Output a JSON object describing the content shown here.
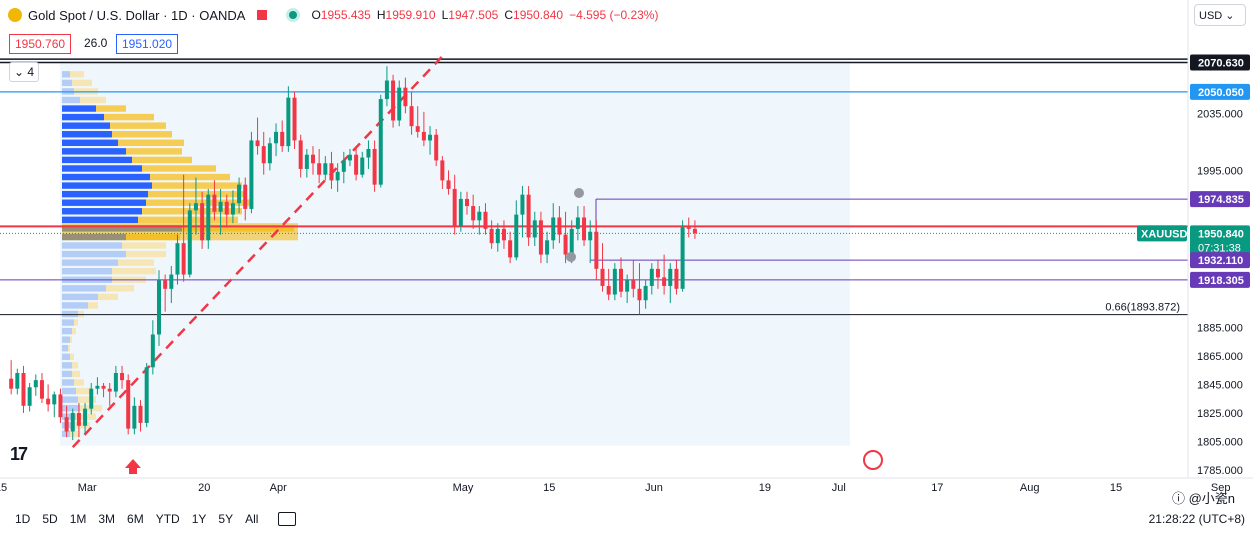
{
  "header": {
    "title": "Gold Spot / U.S. Dollar · 1D · OANDA",
    "ohlc": [
      {
        "k": "O",
        "v": "1955.435"
      },
      {
        "k": "H",
        "v": "1959.910"
      },
      {
        "k": "L",
        "v": "1947.505"
      },
      {
        "k": "C",
        "v": "1950.840"
      }
    ],
    "change": "−4.595 (−0.23%)"
  },
  "trade": {
    "sell": "1950.760",
    "spread": "26.0",
    "buy": "1951.020"
  },
  "indicators_count": "4",
  "currency": "USD",
  "colors": {
    "up": "#089981",
    "down": "#f23645",
    "volume_profile_up": "#2962ff",
    "volume_profile_down": "#f2b705",
    "line_blue": "#2196f3",
    "line_purple": "#673ab7",
    "line_red": "#f23645"
  },
  "chart_data": {
    "type": "candlestick",
    "symbol": "XAUUSD",
    "ylim": [
      1778,
      2092
    ],
    "y_ticks": [
      1785,
      1805,
      1825,
      1845,
      1865,
      1885,
      1995,
      2035
    ],
    "x_labels": [
      {
        "label": "15",
        "day": 0
      },
      {
        "label": "Mar",
        "day": 14
      },
      {
        "label": "20",
        "day": 33
      },
      {
        "label": "Apr",
        "day": 45
      },
      {
        "label": "May",
        "day": 75
      },
      {
        "label": "15",
        "day": 89
      },
      {
        "label": "Jun",
        "day": 106
      },
      {
        "label": "19",
        "day": 124
      },
      {
        "label": "Jul",
        "day": 136
      },
      {
        "label": "17",
        "day": 152
      },
      {
        "label": "Aug",
        "day": 167
      },
      {
        "label": "15",
        "day": 181
      },
      {
        "label": "Sep",
        "day": 198
      }
    ],
    "price_labels": [
      {
        "value": 2070.63,
        "text": "2070.630",
        "style": "dark"
      },
      {
        "value": 2050.05,
        "text": "2050.050",
        "style": "blue"
      },
      {
        "value": 1974.835,
        "text": "1974.835",
        "style": "purple"
      },
      {
        "value": 1950.84,
        "text": "1950.840",
        "style": "green"
      },
      {
        "value": 1932.11,
        "text": "1932.110",
        "style": "purple"
      },
      {
        "value": 1918.305,
        "text": "1918.305",
        "style": "purple"
      }
    ],
    "countdown": "07:31:38",
    "fib_label": "0.66(1893.872)",
    "fib_value": 1893.872,
    "candles": [
      [
        1,
        1849,
        1862,
        1838,
        1842
      ],
      [
        2,
        1842,
        1856,
        1838,
        1853
      ],
      [
        3,
        1853,
        1858,
        1825,
        1830
      ],
      [
        4,
        1830,
        1846,
        1826,
        1843
      ],
      [
        5,
        1843,
        1852,
        1837,
        1848
      ],
      [
        6,
        1848,
        1853,
        1832,
        1835
      ],
      [
        7,
        1835,
        1845,
        1826,
        1831
      ],
      [
        8,
        1831,
        1840,
        1822,
        1838
      ],
      [
        9,
        1838,
        1842,
        1818,
        1822
      ],
      [
        10,
        1822,
        1830,
        1808,
        1812
      ],
      [
        11,
        1812,
        1828,
        1806,
        1825
      ],
      [
        12,
        1825,
        1832,
        1808,
        1816
      ],
      [
        13,
        1816,
        1832,
        1810,
        1828
      ],
      [
        14,
        1828,
        1846,
        1824,
        1842
      ],
      [
        15,
        1842,
        1850,
        1838,
        1844
      ],
      [
        16,
        1844,
        1846,
        1836,
        1842
      ],
      [
        17,
        1842,
        1846,
        1830,
        1840
      ],
      [
        18,
        1840,
        1858,
        1836,
        1853
      ],
      [
        19,
        1853,
        1858,
        1842,
        1848
      ],
      [
        20,
        1848,
        1852,
        1810,
        1814
      ],
      [
        21,
        1814,
        1836,
        1810,
        1830
      ],
      [
        22,
        1830,
        1834,
        1812,
        1818
      ],
      [
        23,
        1818,
        1860,
        1815,
        1857
      ],
      [
        24,
        1857,
        1890,
        1852,
        1880
      ],
      [
        25,
        1880,
        1925,
        1872,
        1918
      ],
      [
        26,
        1918,
        1922,
        1896,
        1912
      ],
      [
        27,
        1912,
        1928,
        1902,
        1922
      ],
      [
        28,
        1922,
        1950,
        1915,
        1944
      ],
      [
        29,
        1944,
        1992,
        1917,
        1922
      ],
      [
        30,
        1922,
        1972,
        1920,
        1967
      ],
      [
        31,
        1967,
        1990,
        1950,
        1972
      ],
      [
        32,
        1972,
        1980,
        1940,
        1946
      ],
      [
        33,
        1946,
        1982,
        1940,
        1978
      ],
      [
        34,
        1978,
        1988,
        1960,
        1966
      ],
      [
        35,
        1966,
        1982,
        1950,
        1973
      ],
      [
        36,
        1973,
        1978,
        1955,
        1964
      ],
      [
        37,
        1964,
        1981,
        1958,
        1972
      ],
      [
        38,
        1972,
        1990,
        1965,
        1985
      ],
      [
        39,
        1985,
        1990,
        1960,
        1968
      ],
      [
        40,
        1968,
        2022,
        1965,
        2016
      ],
      [
        41,
        2016,
        2032,
        2006,
        2012
      ],
      [
        42,
        2012,
        2022,
        1992,
        2000
      ],
      [
        43,
        2000,
        2018,
        1995,
        2014
      ],
      [
        44,
        2014,
        2028,
        2005,
        2022
      ],
      [
        45,
        2022,
        2030,
        2008,
        2012
      ],
      [
        46,
        2012,
        2054,
        2008,
        2046
      ],
      [
        47,
        2046,
        2050,
        2010,
        2016
      ],
      [
        48,
        2016,
        2020,
        1990,
        1996
      ],
      [
        49,
        1996,
        2010,
        1990,
        2006
      ],
      [
        50,
        2006,
        2012,
        1992,
        2000
      ],
      [
        51,
        2000,
        2010,
        1986,
        1992
      ],
      [
        52,
        1992,
        2005,
        1988,
        2000
      ],
      [
        53,
        2000,
        2008,
        1982,
        1988
      ],
      [
        54,
        1988,
        2000,
        1980,
        1994
      ],
      [
        55,
        1994,
        2008,
        1986,
        2002
      ],
      [
        56,
        2002,
        2010,
        1998,
        2006
      ],
      [
        57,
        2006,
        2012,
        1988,
        1992
      ],
      [
        58,
        1992,
        2008,
        1990,
        2004
      ],
      [
        59,
        2004,
        2016,
        1996,
        2010
      ],
      [
        60,
        2010,
        2016,
        1980,
        1985
      ],
      [
        61,
        1985,
        2048,
        1983,
        2045
      ],
      [
        62,
        2045,
        2068,
        2040,
        2058
      ],
      [
        63,
        2058,
        2062,
        2025,
        2030
      ],
      [
        64,
        2030,
        2058,
        2026,
        2053
      ],
      [
        65,
        2053,
        2060,
        2035,
        2040
      ],
      [
        66,
        2040,
        2050,
        2020,
        2026
      ],
      [
        67,
        2026,
        2040,
        2018,
        2022
      ],
      [
        68,
        2022,
        2036,
        2012,
        2016
      ],
      [
        69,
        2016,
        2026,
        2006,
        2020
      ],
      [
        70,
        2020,
        2024,
        1998,
        2002
      ],
      [
        71,
        2002,
        2005,
        1982,
        1988
      ],
      [
        72,
        1988,
        1995,
        1978,
        1982
      ],
      [
        73,
        1982,
        1992,
        1950,
        1956
      ],
      [
        74,
        1956,
        1980,
        1952,
        1975
      ],
      [
        75,
        1975,
        1980,
        1964,
        1970
      ],
      [
        76,
        1970,
        1978,
        1954,
        1960
      ],
      [
        77,
        1960,
        1970,
        1950,
        1966
      ],
      [
        78,
        1966,
        1972,
        1950,
        1954
      ],
      [
        79,
        1954,
        1960,
        1940,
        1944
      ],
      [
        80,
        1944,
        1958,
        1938,
        1954
      ],
      [
        81,
        1954,
        1960,
        1940,
        1946
      ],
      [
        82,
        1946,
        1952,
        1930,
        1934
      ],
      [
        83,
        1934,
        1974,
        1932,
        1964
      ],
      [
        84,
        1964,
        1984,
        1948,
        1978
      ],
      [
        85,
        1978,
        1984,
        1942,
        1948
      ],
      [
        86,
        1948,
        1966,
        1942,
        1960
      ],
      [
        87,
        1960,
        1966,
        1930,
        1936
      ],
      [
        88,
        1936,
        1952,
        1930,
        1946
      ],
      [
        89,
        1946,
        1972,
        1940,
        1962
      ],
      [
        90,
        1962,
        1970,
        1944,
        1950
      ],
      [
        91,
        1950,
        1966,
        1930,
        1936
      ],
      [
        92,
        1936,
        1960,
        1930,
        1954
      ],
      [
        93,
        1954,
        1970,
        1946,
        1962
      ],
      [
        94,
        1962,
        1970,
        1942,
        1946
      ],
      [
        95,
        1946,
        1960,
        1930,
        1952
      ],
      [
        96,
        1952,
        1960,
        1918,
        1926
      ],
      [
        97,
        1926,
        1944,
        1910,
        1914
      ],
      [
        98,
        1914,
        1926,
        1904,
        1908
      ],
      [
        99,
        1908,
        1930,
        1904,
        1926
      ],
      [
        100,
        1926,
        1934,
        1906,
        1910
      ],
      [
        101,
        1910,
        1922,
        1902,
        1918
      ],
      [
        102,
        1918,
        1932,
        1906,
        1912
      ],
      [
        103,
        1912,
        1930,
        1894,
        1904
      ],
      [
        104,
        1904,
        1918,
        1898,
        1914
      ],
      [
        105,
        1914,
        1930,
        1908,
        1926
      ],
      [
        106,
        1926,
        1932,
        1912,
        1920
      ],
      [
        107,
        1920,
        1936,
        1908,
        1914
      ],
      [
        108,
        1914,
        1930,
        1902,
        1926
      ],
      [
        109,
        1926,
        1932,
        1908,
        1912
      ],
      [
        110,
        1912,
        1960,
        1910,
        1955
      ],
      [
        111,
        1955,
        1962,
        1948,
        1954
      ],
      [
        112,
        1954,
        1960,
        1947,
        1951
      ]
    ]
  }
}
